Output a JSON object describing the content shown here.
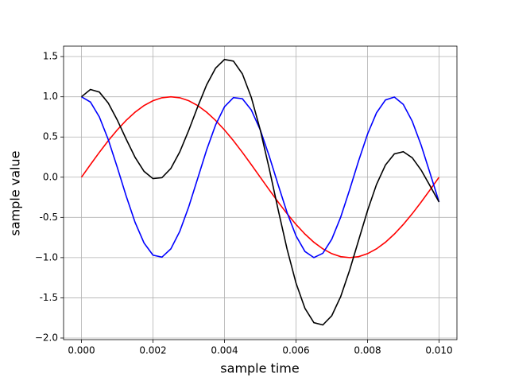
{
  "chart_data": {
    "type": "line",
    "x_label": "sample time",
    "y_label": "sample value",
    "x": [
      0,
      0.00025,
      0.0005,
      0.00075,
      0.001,
      0.00125,
      0.0015,
      0.00175,
      0.002,
      0.00225,
      0.0025,
      0.00275,
      0.003,
      0.00325,
      0.0035,
      0.00375,
      0.004,
      0.00425,
      0.0045,
      0.00475,
      0.005,
      0.00525,
      0.0055,
      0.00575,
      0.006,
      0.00625,
      0.0065,
      0.00675,
      0.007,
      0.00725,
      0.0075,
      0.00775,
      0.008,
      0.00825,
      0.0085,
      0.00875,
      0.009,
      0.00925,
      0.0095,
      0.00975,
      0.01
    ],
    "series": [
      {
        "color": "#ff0000",
        "values": [
          0,
          0.156,
          0.309,
          0.454,
          0.588,
          0.707,
          0.809,
          0.891,
          0.951,
          0.988,
          1.0,
          0.988,
          0.951,
          0.891,
          0.809,
          0.707,
          0.588,
          0.454,
          0.309,
          0.156,
          0,
          -0.156,
          -0.309,
          -0.454,
          -0.588,
          -0.707,
          -0.809,
          -0.891,
          -0.951,
          -0.988,
          -1.0,
          -0.988,
          -0.951,
          -0.891,
          -0.809,
          -0.707,
          -0.588,
          -0.454,
          -0.309,
          -0.156,
          0
        ]
      },
      {
        "color": "#0000ff",
        "values": [
          1.0,
          0.935,
          0.75,
          0.468,
          0.125,
          -0.233,
          -0.562,
          -0.818,
          -0.969,
          -0.994,
          -0.891,
          -0.673,
          -0.368,
          -0.016,
          0.339,
          0.649,
          0.876,
          0.99,
          0.976,
          0.836,
          0.588,
          0.264,
          -0.094,
          -0.44,
          -0.729,
          -0.924,
          -1.0,
          -0.946,
          -0.771,
          -0.496,
          -0.156,
          0.203,
          0.536,
          0.8,
          0.96,
          0.997,
          0.905,
          0.696,
          0.397,
          0.047,
          -0.309
        ]
      },
      {
        "color": "#000000",
        "values": [
          1.0,
          1.091,
          1.059,
          0.922,
          0.713,
          0.474,
          0.247,
          0.073,
          -0.018,
          -0.006,
          0.109,
          0.315,
          0.583,
          0.875,
          1.148,
          1.356,
          1.464,
          1.444,
          1.285,
          0.992,
          0.588,
          0.108,
          -0.403,
          -0.894,
          -1.317,
          -1.631,
          -1.809,
          -1.837,
          -1.722,
          -1.484,
          -1.156,
          -0.785,
          -0.415,
          -0.091,
          0.151,
          0.29,
          0.317,
          0.242,
          0.088,
          -0.109,
          -0.309
        ]
      }
    ],
    "xlim": [
      -0.0005,
      0.0105
    ],
    "xticks": [
      {
        "value": 0,
        "label": "0.000"
      },
      {
        "value": 0.002,
        "label": "0.002"
      },
      {
        "value": 0.004,
        "label": "0.004"
      },
      {
        "value": 0.006,
        "label": "0.006"
      },
      {
        "value": 0.008,
        "label": "0.008"
      },
      {
        "value": 0.01,
        "label": "0.010"
      }
    ],
    "ylim": [
      -2.02,
      1.63
    ],
    "yticks": [
      {
        "value": -2,
        "label": "−2.0"
      },
      -1.5,
      {
        "value": -1,
        "label": "−1.0"
      },
      -0.5,
      {
        "value": 0,
        "label": "0.0"
      },
      0.5,
      {
        "value": 1,
        "label": "1.0"
      },
      1.5
    ],
    "grid": true
  }
}
